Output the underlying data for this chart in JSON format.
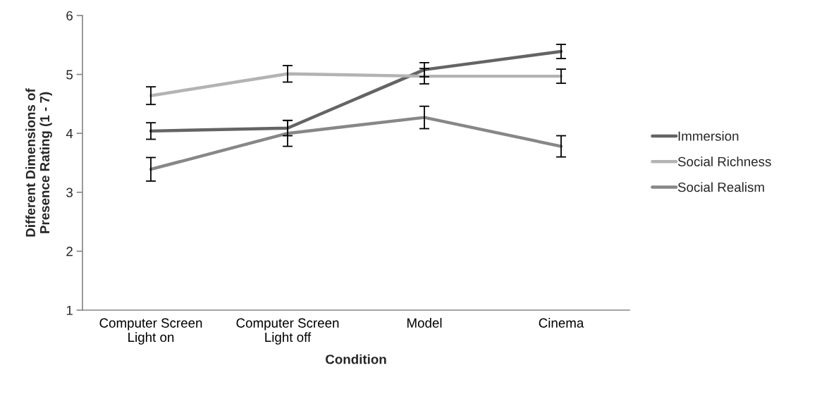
{
  "chart_data": {
    "type": "line",
    "xlabel": "Condition",
    "ylabel": "Different Dimensions of\nPresence Rating (1 - 7)",
    "categories": [
      "Computer Screen\nLight on",
      "Computer Screen\nLight off",
      "Model",
      "Cinema"
    ],
    "series": [
      {
        "name": "Immersion",
        "color": "#646464",
        "values": [
          4.04,
          4.09,
          5.08,
          5.39
        ],
        "errors": [
          0.14,
          0.13,
          0.12,
          0.12
        ]
      },
      {
        "name": "Social Richness",
        "color": "#b3b3b3",
        "values": [
          4.64,
          5.01,
          4.97,
          4.97
        ],
        "errors": [
          0.15,
          0.14,
          0.13,
          0.12
        ]
      },
      {
        "name": "Social Realism",
        "color": "#878787",
        "values": [
          3.39,
          4.0,
          4.27,
          3.78
        ],
        "errors": [
          0.2,
          0.22,
          0.19,
          0.18
        ]
      }
    ],
    "ylim": [
      1,
      6
    ],
    "yticks": [
      1,
      2,
      3,
      4,
      5,
      6
    ],
    "grid": false,
    "legend": "right",
    "marker": "none",
    "line_style": "solid"
  }
}
